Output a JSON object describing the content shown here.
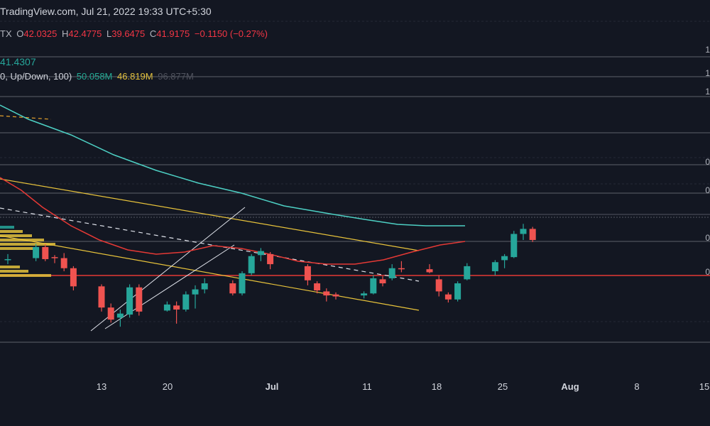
{
  "header": {
    "source": "TradingView.com, Jul 21, 2022 19:33 UTC+5:30",
    "symbol_fragment": "TX",
    "open_label": "O",
    "open": "42.0325",
    "high_label": "H",
    "high": "42.4775",
    "low_label": "L",
    "low": "39.6475",
    "close_label": "C",
    "close": "41.9175",
    "change": "−0.1150 (−0.27%)",
    "ma_value": "41.4307",
    "vp_label": "0, Up/Down, 100)",
    "vp_up": "50.058M",
    "vp_down": "46.819M",
    "vp_total": "96.877M"
  },
  "right_axis_fragments": [
    "1",
    "1",
    "1",
    "0",
    "0",
    "0",
    "0"
  ],
  "colors": {
    "background": "#131722",
    "up": "#26a69a",
    "down": "#ef5350",
    "ma_long": "#4dd0c4",
    "ma_short": "#e53935",
    "channel": "#e8c33b",
    "support": "#e53935"
  },
  "chart_data": {
    "type": "candlestick",
    "x_ticks": [
      {
        "label": "13",
        "bold": false
      },
      {
        "label": "20",
        "bold": false
      },
      {
        "label": "Jul",
        "bold": true
      },
      {
        "label": "11",
        "bold": false
      },
      {
        "label": "18",
        "bold": false
      },
      {
        "label": "25",
        "bold": false
      },
      {
        "label": "Aug",
        "bold": true
      },
      {
        "label": "8",
        "bold": false
      },
      {
        "label": "15",
        "bold": false
      }
    ],
    "candles": [
      {
        "date": "2022-06-03",
        "o": 42.0,
        "h": 42.6,
        "l": 41.6,
        "c": 42.1
      },
      {
        "date": "2022-06-06",
        "o": 42.2,
        "h": 43.6,
        "l": 41.9,
        "c": 43.3
      },
      {
        "date": "2022-06-07",
        "o": 43.3,
        "h": 43.6,
        "l": 41.9,
        "c": 42.1
      },
      {
        "date": "2022-06-08",
        "o": 42.3,
        "h": 42.5,
        "l": 41.7,
        "c": 42.2
      },
      {
        "date": "2022-06-09",
        "o": 42.2,
        "h": 42.7,
        "l": 40.9,
        "c": 41.2
      },
      {
        "date": "2022-06-10",
        "o": 41.2,
        "h": 41.4,
        "l": 39.0,
        "c": 39.4
      },
      {
        "date": "2022-06-13",
        "o": 39.4,
        "h": 39.6,
        "l": 36.9,
        "c": 37.3
      },
      {
        "date": "2022-06-14",
        "o": 37.3,
        "h": 37.7,
        "l": 35.8,
        "c": 36.1
      },
      {
        "date": "2022-06-15",
        "o": 36.3,
        "h": 37.1,
        "l": 35.4,
        "c": 36.7
      },
      {
        "date": "2022-06-16",
        "o": 36.6,
        "h": 39.6,
        "l": 36.3,
        "c": 39.3
      },
      {
        "date": "2022-06-17",
        "o": 39.3,
        "h": 39.6,
        "l": 36.5,
        "c": 36.9
      },
      {
        "date": "2022-06-20",
        "o": 37.0,
        "h": 37.9,
        "l": 36.9,
        "c": 37.6
      },
      {
        "date": "2022-06-21",
        "o": 37.5,
        "h": 37.9,
        "l": 35.7,
        "c": 37.1
      },
      {
        "date": "2022-06-22",
        "o": 37.1,
        "h": 38.9,
        "l": 36.9,
        "c": 38.6
      },
      {
        "date": "2022-06-23",
        "o": 38.6,
        "h": 39.5,
        "l": 37.2,
        "c": 39.1
      },
      {
        "date": "2022-06-24",
        "o": 39.1,
        "h": 40.2,
        "l": 38.7,
        "c": 39.7
      },
      {
        "date": "2022-06-27",
        "o": 39.7,
        "h": 40.0,
        "l": 38.5,
        "c": 38.7
      },
      {
        "date": "2022-06-28",
        "o": 38.7,
        "h": 40.9,
        "l": 38.5,
        "c": 40.7
      },
      {
        "date": "2022-06-29",
        "o": 40.7,
        "h": 42.6,
        "l": 40.5,
        "c": 42.4
      },
      {
        "date": "2022-06-30",
        "o": 42.5,
        "h": 43.2,
        "l": 41.9,
        "c": 42.9
      },
      {
        "date": "2022-07-01",
        "o": 42.6,
        "h": 42.8,
        "l": 41.1,
        "c": 41.6
      },
      {
        "date": "2022-07-05",
        "o": 41.4,
        "h": 41.6,
        "l": 39.5,
        "c": 40.0
      },
      {
        "date": "2022-07-06",
        "o": 39.7,
        "h": 39.9,
        "l": 38.7,
        "c": 39.0
      },
      {
        "date": "2022-07-07",
        "o": 38.9,
        "h": 39.2,
        "l": 37.9,
        "c": 38.5
      },
      {
        "date": "2022-07-08",
        "o": 38.6,
        "h": 38.8,
        "l": 38.1,
        "c": 38.4
      },
      {
        "date": "2022-07-11",
        "o": 38.5,
        "h": 38.9,
        "l": 38.2,
        "c": 38.7
      },
      {
        "date": "2022-07-12",
        "o": 38.7,
        "h": 40.5,
        "l": 38.6,
        "c": 40.2
      },
      {
        "date": "2022-07-13",
        "o": 40.1,
        "h": 40.4,
        "l": 39.4,
        "c": 39.7
      },
      {
        "date": "2022-07-14",
        "o": 40.2,
        "h": 41.6,
        "l": 40.0,
        "c": 41.2
      },
      {
        "date": "2022-07-15",
        "o": 41.2,
        "h": 41.9,
        "l": 40.8,
        "c": 41.1
      },
      {
        "date": "2022-07-18",
        "o": 41.1,
        "h": 41.6,
        "l": 40.7,
        "c": 40.8
      },
      {
        "date": "2022-07-19",
        "o": 40.1,
        "h": 40.5,
        "l": 38.4,
        "c": 38.9
      },
      {
        "date": "2022-07-20",
        "o": 38.6,
        "h": 38.8,
        "l": 37.8,
        "c": 38.1
      },
      {
        "date": "2022-07-21",
        "o": 38.1,
        "h": 39.9,
        "l": 37.9,
        "c": 39.7
      },
      {
        "date": "2022-07-22",
        "o": 40.1,
        "h": 41.7,
        "l": 40.0,
        "c": 41.4
      },
      {
        "date": "2022-07-25",
        "o": 40.9,
        "h": 42.0,
        "l": 40.5,
        "c": 41.8
      },
      {
        "date": "2022-07-26",
        "o": 42.0,
        "h": 42.6,
        "l": 41.2,
        "c": 42.4
      },
      {
        "date": "2022-07-27",
        "o": 42.3,
        "h": 44.9,
        "l": 42.2,
        "c": 44.6
      },
      {
        "date": "2022-07-28",
        "o": 44.6,
        "h": 45.6,
        "l": 44.0,
        "c": 45.1
      },
      {
        "date": "2022-07-29",
        "o": 45.1,
        "h": 45.3,
        "l": 43.8,
        "c": 44.0
      }
    ]
  }
}
